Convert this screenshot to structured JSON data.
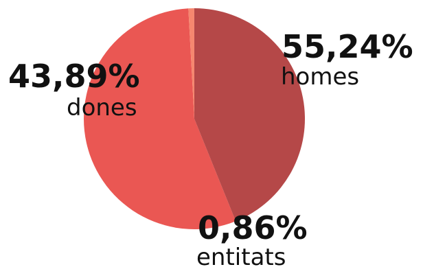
{
  "chart_data": {
    "type": "pie",
    "slices": [
      {
        "label": "homes",
        "value": 55.24,
        "value_text": "55,24%",
        "color": "#ea5753"
      },
      {
        "label": "entitats",
        "value": 0.86,
        "value_text": "0,86%",
        "color": "#f6876f"
      },
      {
        "label": "dones",
        "value": 43.89,
        "value_text": "43,89%",
        "color": "#b54848"
      }
    ],
    "start_angle_deg": 158,
    "direction": "clockwise",
    "legend": "none",
    "data_labels": "outside"
  }
}
